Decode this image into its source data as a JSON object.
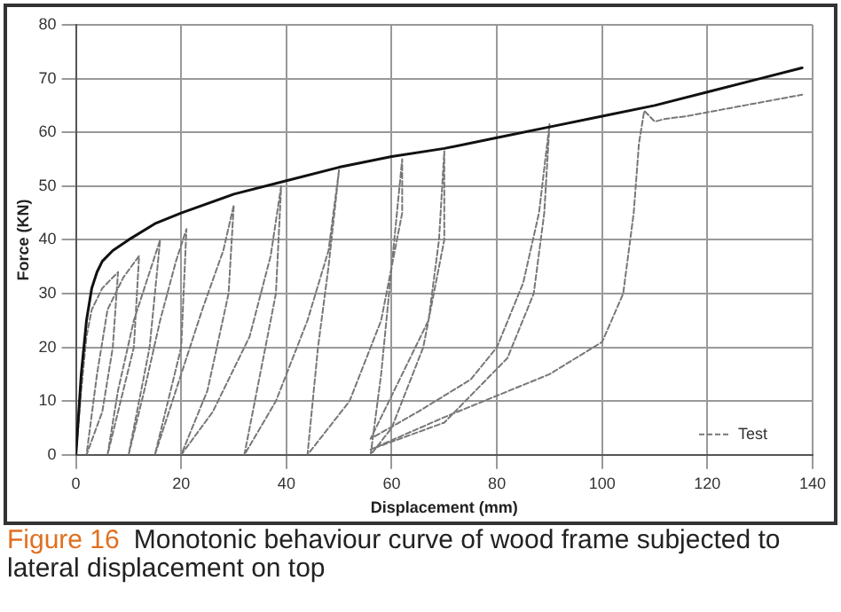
{
  "chart_data": {
    "type": "line",
    "xlabel": "Displacement (mm)",
    "ylabel": "Force (KN)",
    "xlim": [
      0,
      140
    ],
    "xticks": [
      0,
      20,
      40,
      60,
      80,
      100,
      120,
      140
    ],
    "ylim": [
      0,
      80
    ],
    "yticks": [
      0,
      10,
      20,
      30,
      40,
      50,
      60,
      70,
      80
    ],
    "grid": true,
    "legend": "bottom right",
    "marker": "none",
    "annotations": [
      "Figure 16",
      "Monotonic behaviour curve of wood frame subjected to lateral displacement on top"
    ],
    "series": [
      {
        "color": "#111111",
        "line_style": "solid",
        "x": [
          0,
          1,
          2,
          3,
          4,
          5,
          7,
          10,
          15,
          20,
          30,
          40,
          50,
          60,
          70,
          80,
          90,
          100,
          110,
          120,
          130,
          138
        ],
        "values": [
          0,
          15,
          25,
          31,
          34,
          36,
          38,
          40,
          43,
          45,
          48.5,
          51,
          53.5,
          55.5,
          57,
          59,
          61,
          63,
          65,
          67.5,
          70,
          72
        ]
      },
      {
        "name": "Test",
        "color": "#777777",
        "line_style": "dashed",
        "x": [
          0,
          1,
          2,
          3,
          5,
          8,
          7,
          5,
          2,
          4,
          6,
          9,
          12,
          11,
          6,
          8,
          11,
          14,
          16,
          14,
          10,
          13,
          16,
          19,
          21,
          20,
          15,
          19,
          24,
          28,
          30,
          29,
          25,
          20,
          26,
          33,
          37,
          39,
          38,
          35,
          32,
          38,
          44,
          48,
          50,
          48,
          46,
          44,
          52,
          58,
          62,
          62,
          60,
          58,
          56,
          60,
          66,
          70,
          70,
          69,
          67,
          62,
          56,
          65,
          75,
          80,
          85,
          88,
          90,
          89,
          87,
          82,
          70,
          56,
          70,
          80,
          90,
          100,
          104,
          106,
          107,
          108,
          110,
          112,
          116,
          138
        ],
        "values": [
          0,
          12,
          22,
          27,
          31,
          34,
          20,
          8,
          0,
          15,
          27,
          33,
          37,
          20,
          0,
          12,
          25,
          34,
          40,
          20,
          0,
          12,
          25,
          36,
          42,
          20,
          0,
          12,
          27,
          38,
          46.5,
          30,
          12,
          0,
          8,
          22,
          37,
          50,
          30,
          15,
          0,
          10,
          25,
          38,
          53,
          35,
          20,
          0,
          10,
          25,
          45,
          55,
          35,
          15,
          0,
          5,
          20,
          40,
          56.5,
          40,
          25,
          15,
          3,
          8,
          14,
          20,
          32,
          45,
          61.5,
          45,
          30,
          18,
          6,
          1,
          7,
          11,
          15,
          21,
          30,
          45,
          58,
          64,
          62,
          62.5,
          63,
          67
        ]
      }
    ]
  }
}
